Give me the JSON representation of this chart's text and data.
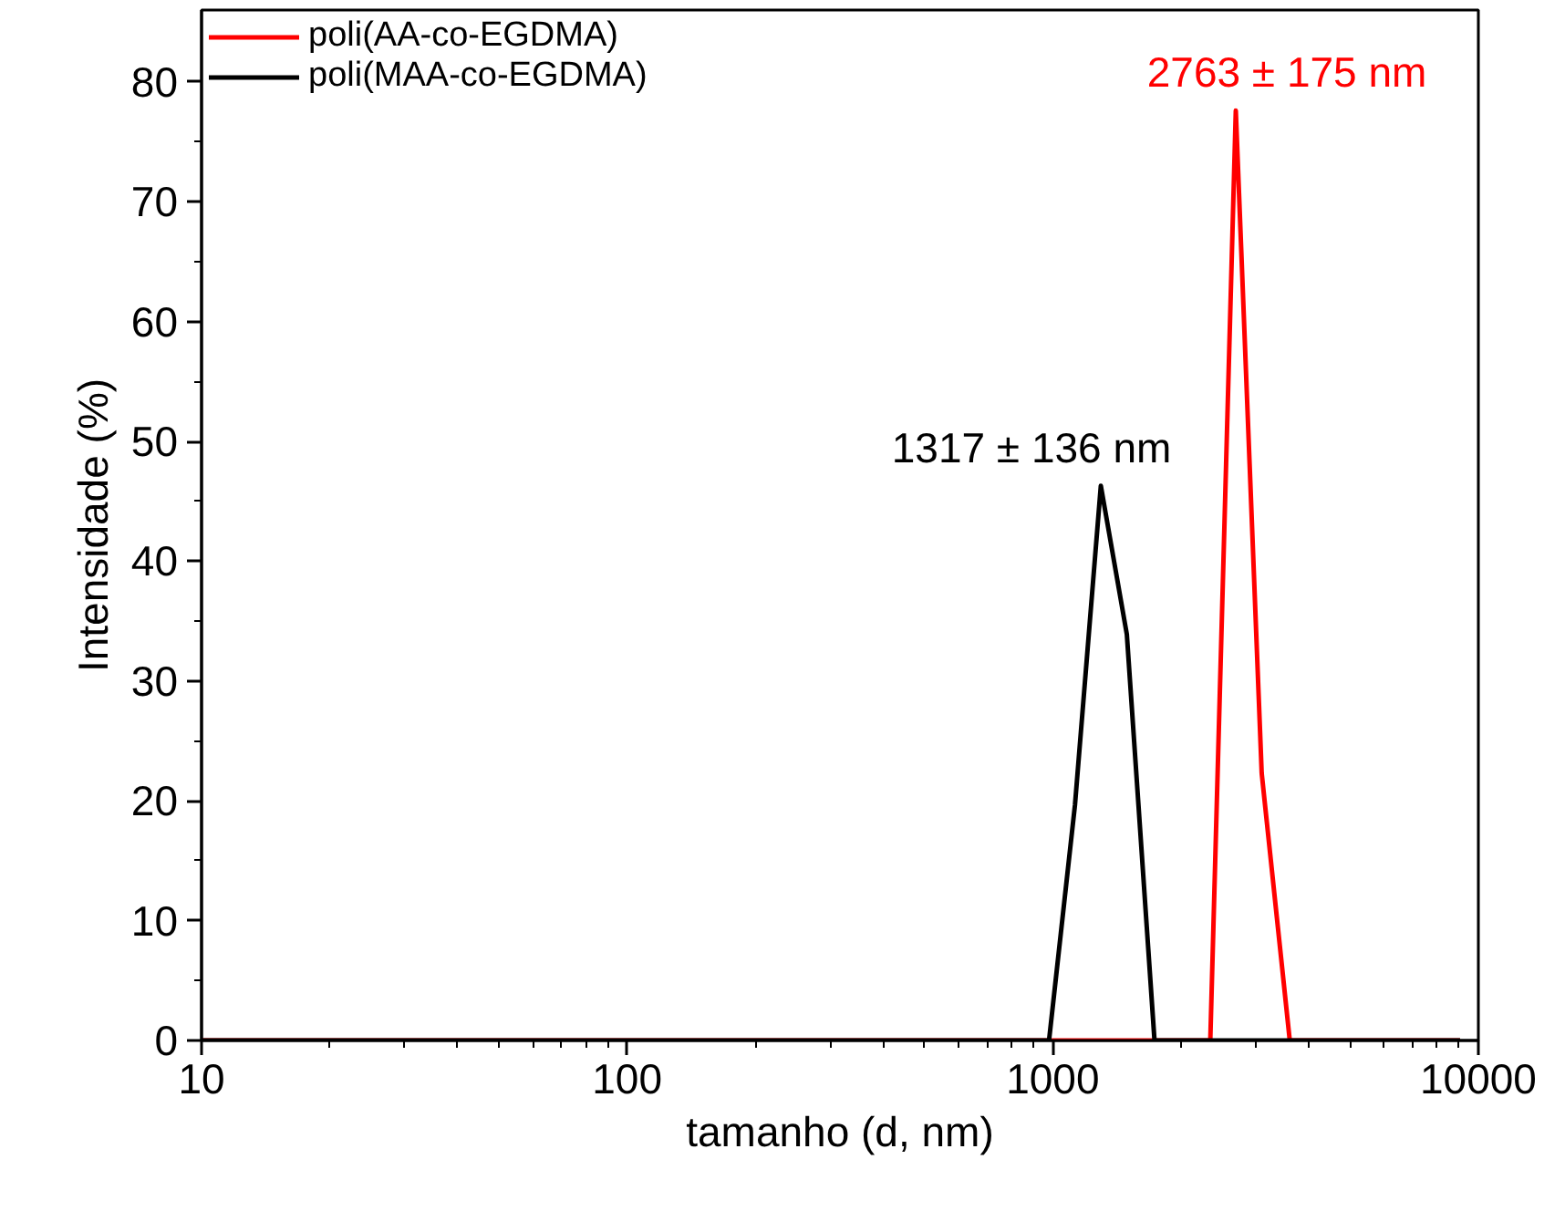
{
  "chart_data": {
    "type": "line",
    "xlabel": "tamanho (d, nm)",
    "ylabel": "Intensidade (%)",
    "log": "x",
    "xlim": [
      10,
      10000
    ],
    "xticks": [
      10,
      100,
      1000,
      10000
    ],
    "ylim": [
      0,
      86
    ],
    "yticks": [
      0,
      10,
      20,
      30,
      40,
      50,
      60,
      70,
      80
    ],
    "grid": false,
    "legend": "top left",
    "marker": "none",
    "line_style": "solid",
    "series": [
      {
        "name": "poli(AA-co-EGDMA)",
        "color": "#ff0000",
        "x": [
          10,
          2345,
          2692,
          3097,
          3605,
          9058
        ],
        "values": [
          0,
          0,
          77.6,
          22.3,
          0,
          0
        ]
      },
      {
        "name": "poli(MAA-co-EGDMA)",
        "color": "#000000",
        "x": [
          10,
          980,
          1128,
          1297,
          1493,
          1734,
          9058
        ],
        "values": [
          0,
          0,
          19.7,
          46.3,
          33.9,
          0,
          0
        ]
      }
    ],
    "annotations": [
      {
        "text": "2763 ± 175 nm",
        "x": 2692,
        "y": 77.6
      },
      {
        "text": "1317 ± 136 nm",
        "x": 1297,
        "y": 46.3
      }
    ]
  }
}
